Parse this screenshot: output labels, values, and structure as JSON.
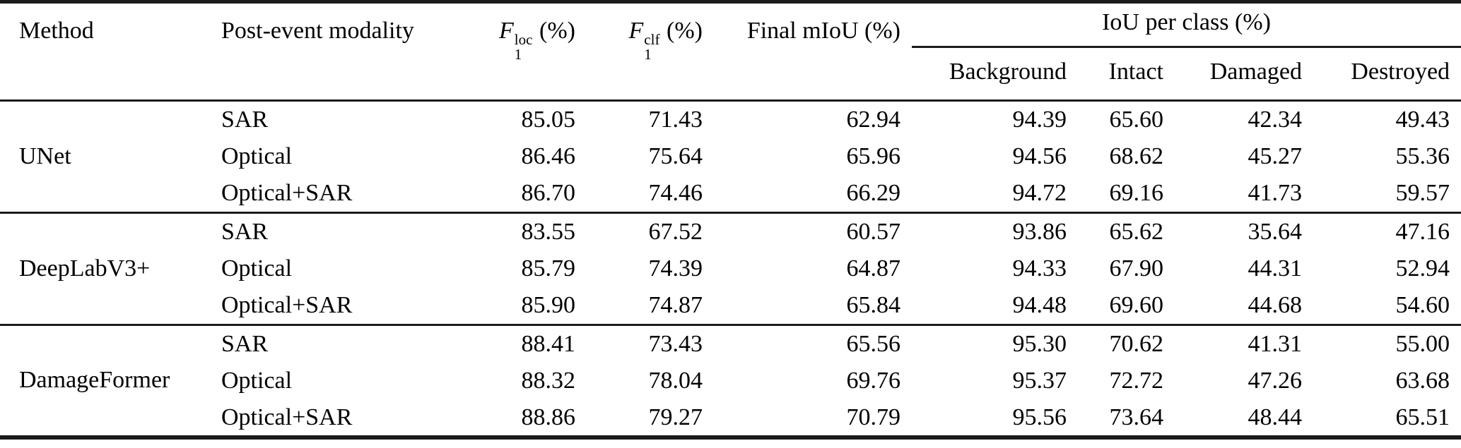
{
  "table": {
    "header": {
      "method": "Method",
      "modality": "Post-event modality",
      "f1loc": {
        "base": "F",
        "sup": "loc",
        "sub": "1",
        "unit": "(%)"
      },
      "f1clf": {
        "base": "F",
        "sup": "clf",
        "sub": "1",
        "unit": "(%)"
      },
      "final_miou": "Final mIoU (%)",
      "iou_per_class": "IoU per class (%)",
      "subheaders": {
        "background": "Background",
        "intact": "Intact",
        "damaged": "Damaged",
        "destroyed": "Destroyed"
      }
    },
    "groups": [
      {
        "method": "UNet",
        "rows": [
          {
            "modality": "SAR",
            "f1loc": "85.05",
            "f1clf": "71.43",
            "final_miou": "62.94",
            "background": "94.39",
            "intact": "65.60",
            "damaged": "42.34",
            "destroyed": "49.43"
          },
          {
            "modality": "Optical",
            "f1loc": "86.46",
            "f1clf": "75.64",
            "final_miou": "65.96",
            "background": "94.56",
            "intact": "68.62",
            "damaged": "45.27",
            "destroyed": "55.36"
          },
          {
            "modality": "Optical+SAR",
            "f1loc": "86.70",
            "f1clf": "74.46",
            "final_miou": "66.29",
            "background": "94.72",
            "intact": "69.16",
            "damaged": "41.73",
            "destroyed": "59.57"
          }
        ]
      },
      {
        "method": "DeepLabV3+",
        "rows": [
          {
            "modality": "SAR",
            "f1loc": "83.55",
            "f1clf": "67.52",
            "final_miou": "60.57",
            "background": "93.86",
            "intact": "65.62",
            "damaged": "35.64",
            "destroyed": "47.16"
          },
          {
            "modality": "Optical",
            "f1loc": "85.79",
            "f1clf": "74.39",
            "final_miou": "64.87",
            "background": "94.33",
            "intact": "67.90",
            "damaged": "44.31",
            "destroyed": "52.94"
          },
          {
            "modality": "Optical+SAR",
            "f1loc": "85.90",
            "f1clf": "74.87",
            "final_miou": "65.84",
            "background": "94.48",
            "intact": "69.60",
            "damaged": "44.68",
            "destroyed": "54.60"
          }
        ]
      },
      {
        "method": "DamageFormer",
        "rows": [
          {
            "modality": "SAR",
            "f1loc": "88.41",
            "f1clf": "73.43",
            "final_miou": "65.56",
            "background": "95.30",
            "intact": "70.62",
            "damaged": "41.31",
            "destroyed": "55.00"
          },
          {
            "modality": "Optical",
            "f1loc": "88.32",
            "f1clf": "78.04",
            "final_miou": "69.76",
            "background": "95.37",
            "intact": "72.72",
            "damaged": "47.26",
            "destroyed": "63.68"
          },
          {
            "modality": "Optical+SAR",
            "f1loc": "88.86",
            "f1clf": "79.27",
            "final_miou": "70.79",
            "background": "95.56",
            "intact": "73.64",
            "damaged": "48.44",
            "destroyed": "65.51"
          }
        ]
      }
    ]
  },
  "colors": {
    "text": "#000000",
    "rule": "#1b1b1b",
    "background": "#ffffff"
  }
}
